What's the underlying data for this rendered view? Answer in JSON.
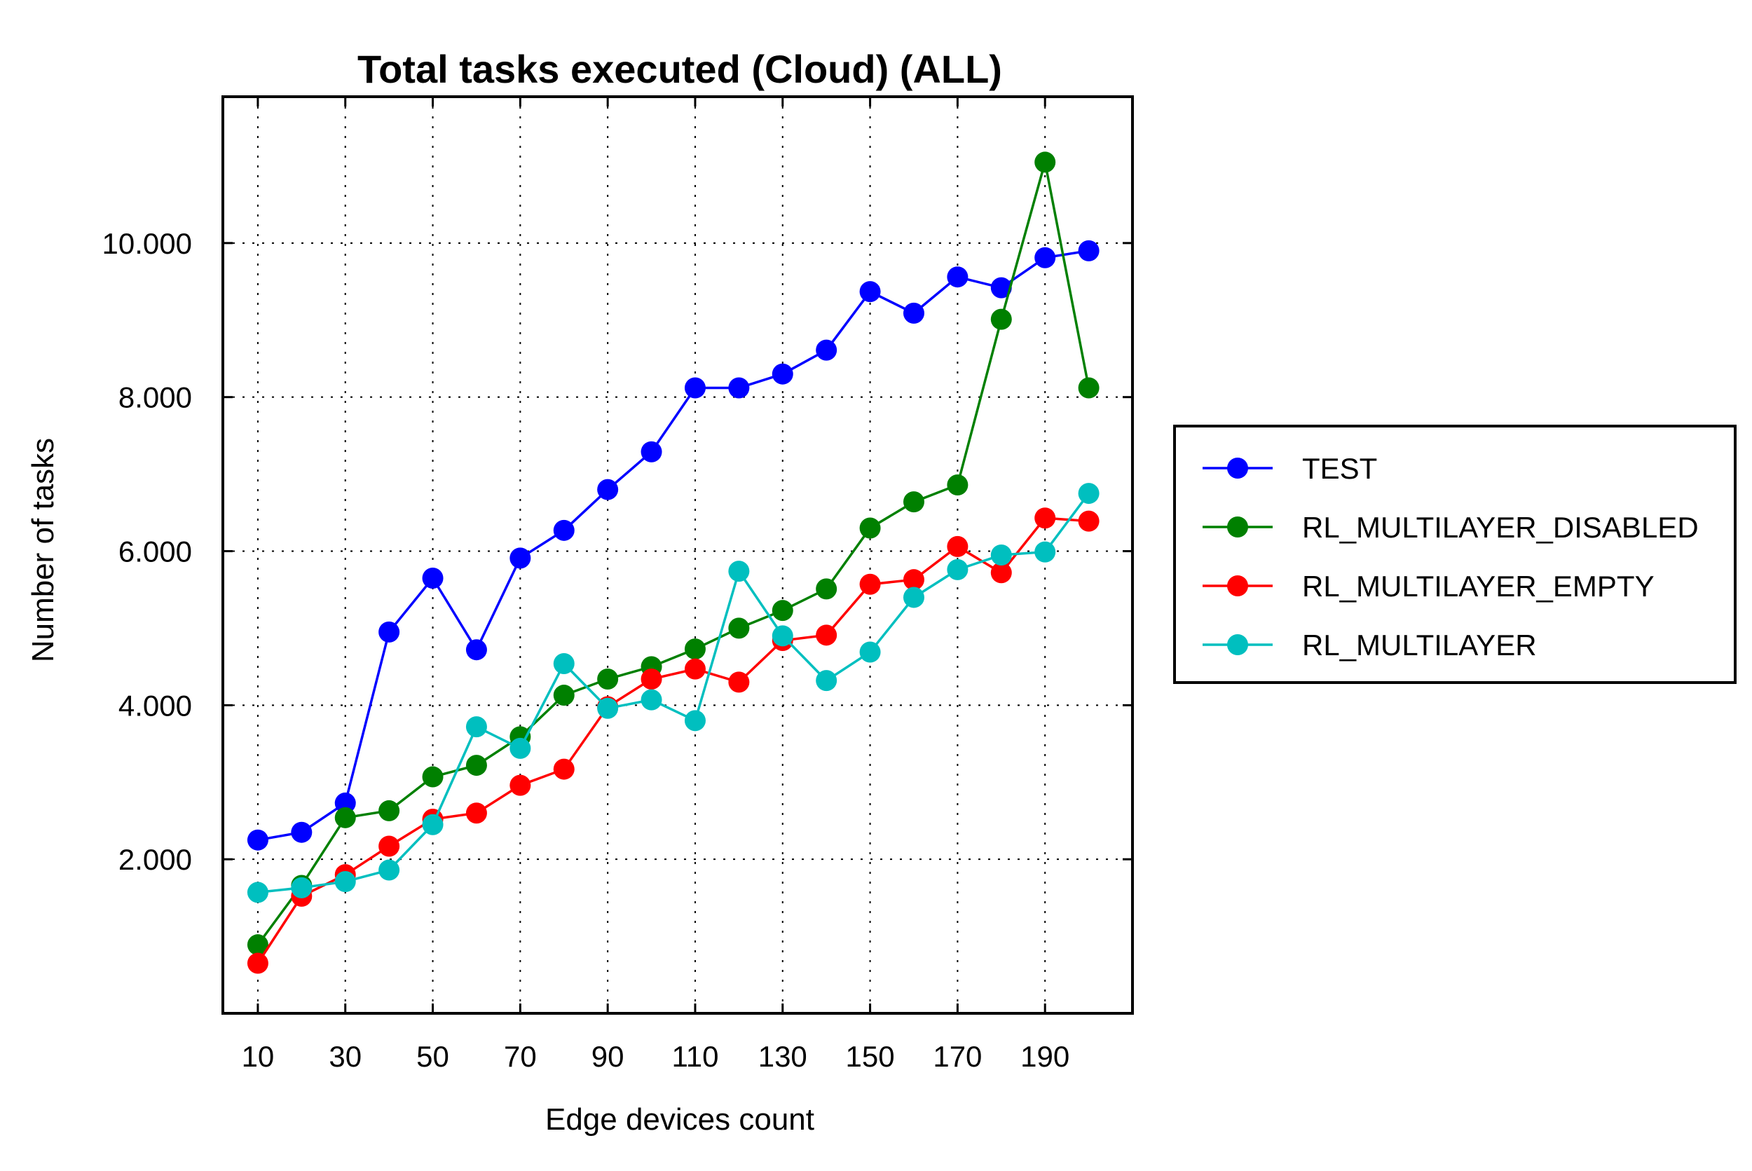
{
  "chart_data": {
    "type": "line",
    "title": "Total tasks executed (Cloud) (ALL)",
    "xlabel": "Edge devices count",
    "ylabel": "Number of tasks",
    "x": [
      10,
      20,
      30,
      40,
      50,
      60,
      70,
      80,
      90,
      100,
      110,
      120,
      130,
      140,
      150,
      160,
      170,
      180,
      190,
      200
    ],
    "xticks": [
      10,
      30,
      50,
      70,
      90,
      110,
      130,
      150,
      170,
      190
    ],
    "xtick_labels": [
      "10",
      "30",
      "50",
      "70",
      "90",
      "110",
      "130",
      "150",
      "170",
      "190"
    ],
    "yticks": [
      2000,
      4000,
      6000,
      8000,
      10000
    ],
    "ytick_labels": [
      "2.000",
      "4.000",
      "6.000",
      "8.000",
      "10.000"
    ],
    "xlim": [
      2,
      210
    ],
    "ylim": [
      0,
      11900
    ],
    "grid": true,
    "legend_position": "outside-right",
    "series": [
      {
        "name": "TEST",
        "color": "#0000ff",
        "values": [
          2250,
          2350,
          2730,
          4950,
          5650,
          4720,
          5910,
          6270,
          6800,
          7290,
          8120,
          8120,
          8300,
          8610,
          9370,
          9090,
          9560,
          9420,
          9810,
          9900
        ]
      },
      {
        "name": "RL_MULTILAYER_DISABLED",
        "color": "#008000",
        "values": [
          890,
          1660,
          2540,
          2630,
          3070,
          3220,
          3590,
          4130,
          4340,
          4500,
          4730,
          5000,
          5230,
          5510,
          6300,
          6640,
          6860,
          9010,
          11050,
          8120
        ]
      },
      {
        "name": "RL_MULTILAYER_EMPTY",
        "color": "#ff0000",
        "values": [
          650,
          1520,
          1800,
          2170,
          2520,
          2600,
          2960,
          3170,
          3980,
          4340,
          4470,
          4300,
          4840,
          4910,
          5570,
          5630,
          6060,
          5720,
          6430,
          6390
        ]
      },
      {
        "name": "RL_MULTILAYER",
        "color": "#00bfbf",
        "values": [
          1570,
          1630,
          1710,
          1860,
          2450,
          3720,
          3440,
          4540,
          3960,
          4070,
          3800,
          5740,
          4900,
          4320,
          4690,
          5400,
          5760,
          5950,
          5990,
          6750
        ]
      }
    ]
  }
}
